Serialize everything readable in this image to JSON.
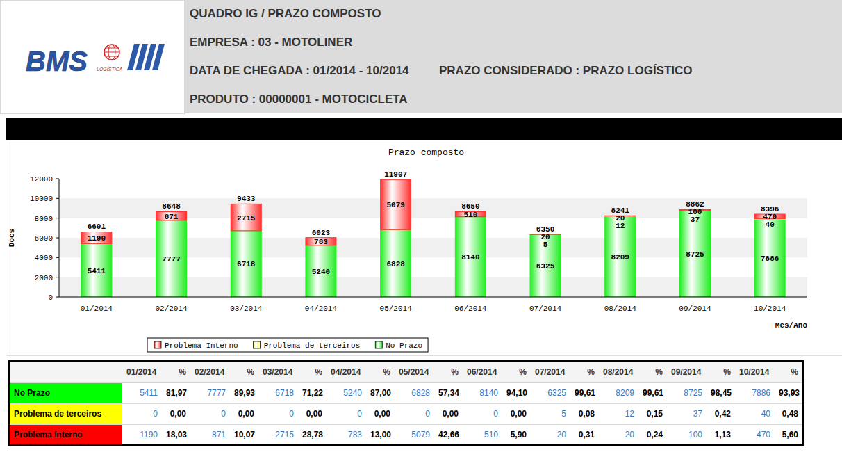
{
  "header": {
    "logo": {
      "name": "BMS",
      "subtitle": "LOGÍSTICA"
    },
    "title": "QUADRO IG / PRAZO COMPOSTO",
    "company": "EMPRESA : 03 - MOTOLINER",
    "arrival_date": "DATA DE CHEGADA : 01/2014 - 10/2014",
    "deadline": "PRAZO CONSIDERADO : PRAZO LOGÍSTICO",
    "product": "PRODUTO : 00000001 - MOTOCICLETA"
  },
  "chart_data": {
    "type": "bar",
    "title": "Prazo composto",
    "x_label": "Mes/Ano",
    "y_label": "Docs",
    "categories": [
      "01/2014",
      "02/2014",
      "03/2014",
      "04/2014",
      "05/2014",
      "06/2014",
      "07/2014",
      "08/2014",
      "09/2014",
      "10/2014"
    ],
    "series": [
      {
        "name": "Problema Interno",
        "color": "#ff3030",
        "values": [
          1190,
          871,
          2715,
          783,
          5079,
          510,
          20,
          20,
          100,
          470
        ]
      },
      {
        "name": "Problema de terceiros",
        "color": "#ffff55",
        "values": [
          0,
          0,
          0,
          0,
          0,
          0,
          5,
          12,
          37,
          40
        ]
      },
      {
        "name": "No Prazo",
        "color": "#22ee22",
        "values": [
          5411,
          7777,
          6718,
          5240,
          6828,
          8140,
          6325,
          8209,
          8725,
          7886
        ]
      }
    ],
    "totals": [
      6601,
      8648,
      9433,
      6023,
      11907,
      8650,
      6350,
      8241,
      8862,
      8396
    ],
    "stacked": true,
    "data_labels": true,
    "grid": true,
    "legend": "bottom",
    "ylim": [
      0,
      12000
    ],
    "yticks": [
      0,
      2000,
      4000,
      6000,
      8000,
      10000,
      12000
    ]
  },
  "table": {
    "header": [
      "01/2014",
      "%",
      "02/2014",
      "%",
      "03/2014",
      "%",
      "04/2014",
      "%",
      "05/2014",
      "%",
      "06/2014",
      "%",
      "07/2014",
      "%",
      "08/2014",
      "%",
      "09/2014",
      "%",
      "10/2014",
      "%"
    ],
    "rows": [
      {
        "label": "No Prazo",
        "color": "#00ff00",
        "cells": [
          5411,
          "81,97",
          7777,
          "89,93",
          6718,
          "71,22",
          5240,
          "87,00",
          6828,
          "57,34",
          8140,
          "94,10",
          6325,
          "99,61",
          8209,
          "99,61",
          8725,
          "98,45",
          7886,
          "93,93"
        ]
      },
      {
        "label": "Problema de terceiros",
        "color": "#ffff00",
        "cells": [
          0,
          "0,00",
          0,
          "0,00",
          0,
          "0,00",
          0,
          "0,00",
          0,
          "0,00",
          0,
          "0,00",
          5,
          "0,08",
          12,
          "0,15",
          37,
          "0,42",
          40,
          "0,48"
        ]
      },
      {
        "label": "Problema Interno",
        "color": "#ff0000",
        "cells": [
          1190,
          "18,03",
          871,
          "10,07",
          2715,
          "28,78",
          783,
          "13,00",
          5079,
          "42,66",
          510,
          "5,90",
          20,
          "0,31",
          20,
          "0,24",
          100,
          "1,13",
          470,
          "5,60"
        ]
      }
    ]
  }
}
